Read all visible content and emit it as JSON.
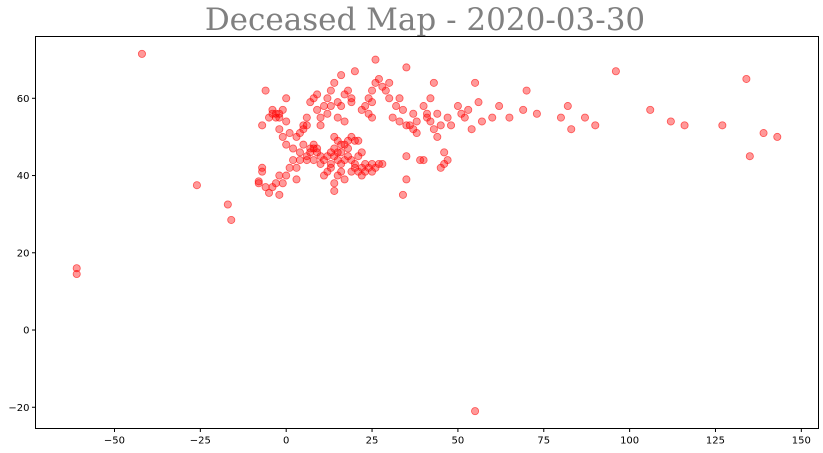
{
  "chart_data": {
    "type": "scatter",
    "title": "Deceased Map -  2020-03-30",
    "xlabel": "",
    "ylabel": "",
    "xlim": [
      -73,
      155
    ],
    "ylim": [
      -25.5,
      76
    ],
    "xticks": [
      -50,
      -25,
      0,
      25,
      50,
      75,
      100,
      125,
      150
    ],
    "yticks": [
      -20,
      0,
      20,
      40,
      60
    ],
    "grid": false,
    "color": "#ff0000",
    "points": [
      [
        -42,
        71.5
      ],
      [
        -61,
        16
      ],
      [
        -61,
        14.5
      ],
      [
        55,
        -21
      ],
      [
        -26,
        37.5
      ],
      [
        -17,
        32.5
      ],
      [
        -16,
        28.5
      ],
      [
        -8,
        38
      ],
      [
        -8,
        38.5
      ],
      [
        -7,
        41
      ],
      [
        -7,
        42
      ],
      [
        -6,
        37
      ],
      [
        -5,
        35.5
      ],
      [
        -4,
        37
      ],
      [
        -3,
        38
      ],
      [
        -2,
        40
      ],
      [
        -2,
        35
      ],
      [
        -1,
        38
      ],
      [
        0,
        40
      ],
      [
        1,
        42
      ],
      [
        2,
        44
      ],
      [
        3,
        39
      ],
      [
        -7,
        53
      ],
      [
        -6,
        62
      ],
      [
        -5,
        55
      ],
      [
        -4,
        56
      ],
      [
        -4,
        57
      ],
      [
        -3,
        55
      ],
      [
        -3,
        56
      ],
      [
        -2,
        56
      ],
      [
        -2,
        55
      ],
      [
        -1,
        57
      ],
      [
        0,
        60
      ],
      [
        0,
        54
      ],
      [
        1,
        51
      ],
      [
        -2,
        52
      ],
      [
        -1,
        50
      ],
      [
        0,
        48
      ],
      [
        2,
        47
      ],
      [
        3,
        50
      ],
      [
        4,
        51
      ],
      [
        5,
        53
      ],
      [
        5,
        52
      ],
      [
        6,
        53
      ],
      [
        4,
        46
      ],
      [
        5,
        48
      ],
      [
        6,
        45
      ],
      [
        7,
        47
      ],
      [
        7,
        46
      ],
      [
        8,
        47
      ],
      [
        8,
        48
      ],
      [
        9,
        47
      ],
      [
        9,
        46
      ],
      [
        10,
        45
      ],
      [
        10,
        43
      ],
      [
        11,
        44
      ],
      [
        12,
        45
      ],
      [
        13,
        43
      ],
      [
        13,
        42
      ],
      [
        12,
        41
      ],
      [
        11,
        40
      ],
      [
        8,
        44
      ],
      [
        6,
        44
      ],
      [
        4,
        44
      ],
      [
        3,
        42
      ],
      [
        6,
        55
      ],
      [
        7,
        59
      ],
      [
        8,
        60
      ],
      [
        9,
        61
      ],
      [
        9,
        57
      ],
      [
        10,
        53
      ],
      [
        10,
        55
      ],
      [
        11,
        58
      ],
      [
        12,
        56
      ],
      [
        12,
        60
      ],
      [
        13,
        58
      ],
      [
        13,
        62
      ],
      [
        14,
        64
      ],
      [
        15,
        59
      ],
      [
        15,
        55
      ],
      [
        16,
        58
      ],
      [
        16,
        66
      ],
      [
        17,
        61
      ],
      [
        18,
        62
      ],
      [
        19,
        60
      ],
      [
        20,
        67
      ],
      [
        19,
        59
      ],
      [
        17,
        54
      ],
      [
        14,
        50
      ],
      [
        15,
        49
      ],
      [
        16,
        48
      ],
      [
        17,
        48
      ],
      [
        18,
        47
      ],
      [
        18,
        49
      ],
      [
        19,
        50
      ],
      [
        20,
        49
      ],
      [
        21,
        49
      ],
      [
        14,
        47
      ],
      [
        15,
        46
      ],
      [
        16,
        46
      ],
      [
        13,
        46
      ],
      [
        14,
        45
      ],
      [
        15,
        44
      ],
      [
        16,
        43
      ],
      [
        17,
        44
      ],
      [
        18,
        45
      ],
      [
        19,
        44
      ],
      [
        20,
        43
      ],
      [
        14,
        38
      ],
      [
        14,
        36
      ],
      [
        15,
        40
      ],
      [
        16,
        41
      ],
      [
        17,
        39
      ],
      [
        19,
        41
      ],
      [
        20,
        42
      ],
      [
        21,
        41
      ],
      [
        22,
        42
      ],
      [
        22,
        40
      ],
      [
        23,
        43
      ],
      [
        24,
        42
      ],
      [
        25,
        43
      ],
      [
        26,
        42
      ],
      [
        27,
        43
      ],
      [
        28,
        43
      ],
      [
        23,
        41
      ],
      [
        25,
        41
      ],
      [
        21,
        45
      ],
      [
        22,
        46
      ],
      [
        22,
        57
      ],
      [
        23,
        58
      ],
      [
        24,
        56
      ],
      [
        24,
        60
      ],
      [
        25,
        55
      ],
      [
        25,
        59
      ],
      [
        25,
        62
      ],
      [
        26,
        70
      ],
      [
        26,
        64
      ],
      [
        27,
        65
      ],
      [
        28,
        63
      ],
      [
        29,
        62
      ],
      [
        30,
        64
      ],
      [
        30,
        60
      ],
      [
        31,
        55
      ],
      [
        32,
        58
      ],
      [
        33,
        60
      ],
      [
        33,
        54
      ],
      [
        34,
        57
      ],
      [
        35,
        53
      ],
      [
        35,
        68
      ],
      [
        34,
        35
      ],
      [
        35,
        45
      ],
      [
        35,
        39
      ],
      [
        36,
        53
      ],
      [
        37,
        56
      ],
      [
        37,
        52
      ],
      [
        38,
        54
      ],
      [
        38,
        51
      ],
      [
        39,
        44
      ],
      [
        40,
        44
      ],
      [
        40,
        58
      ],
      [
        41,
        56
      ],
      [
        41,
        55
      ],
      [
        42,
        54
      ],
      [
        42,
        60
      ],
      [
        43,
        64
      ],
      [
        43,
        52
      ],
      [
        44,
        56
      ],
      [
        44,
        50
      ],
      [
        45,
        53
      ],
      [
        45,
        42
      ],
      [
        46,
        46
      ],
      [
        46,
        43
      ],
      [
        47,
        44
      ],
      [
        47,
        55
      ],
      [
        48,
        53
      ],
      [
        50,
        58
      ],
      [
        51,
        56
      ],
      [
        52,
        55
      ],
      [
        53,
        57
      ],
      [
        54,
        52
      ],
      [
        55,
        64
      ],
      [
        56,
        59
      ],
      [
        57,
        54
      ],
      [
        60,
        55
      ],
      [
        62,
        58
      ],
      [
        65,
        55
      ],
      [
        69,
        57
      ],
      [
        70,
        62
      ],
      [
        73,
        56
      ],
      [
        80,
        55
      ],
      [
        82,
        58
      ],
      [
        83,
        52
      ],
      [
        87,
        55
      ],
      [
        90,
        53
      ],
      [
        96,
        67
      ],
      [
        106,
        57
      ],
      [
        112,
        54
      ],
      [
        116,
        53
      ],
      [
        127,
        53
      ],
      [
        134,
        65
      ],
      [
        135,
        45
      ],
      [
        139,
        51
      ],
      [
        143,
        50
      ]
    ]
  }
}
